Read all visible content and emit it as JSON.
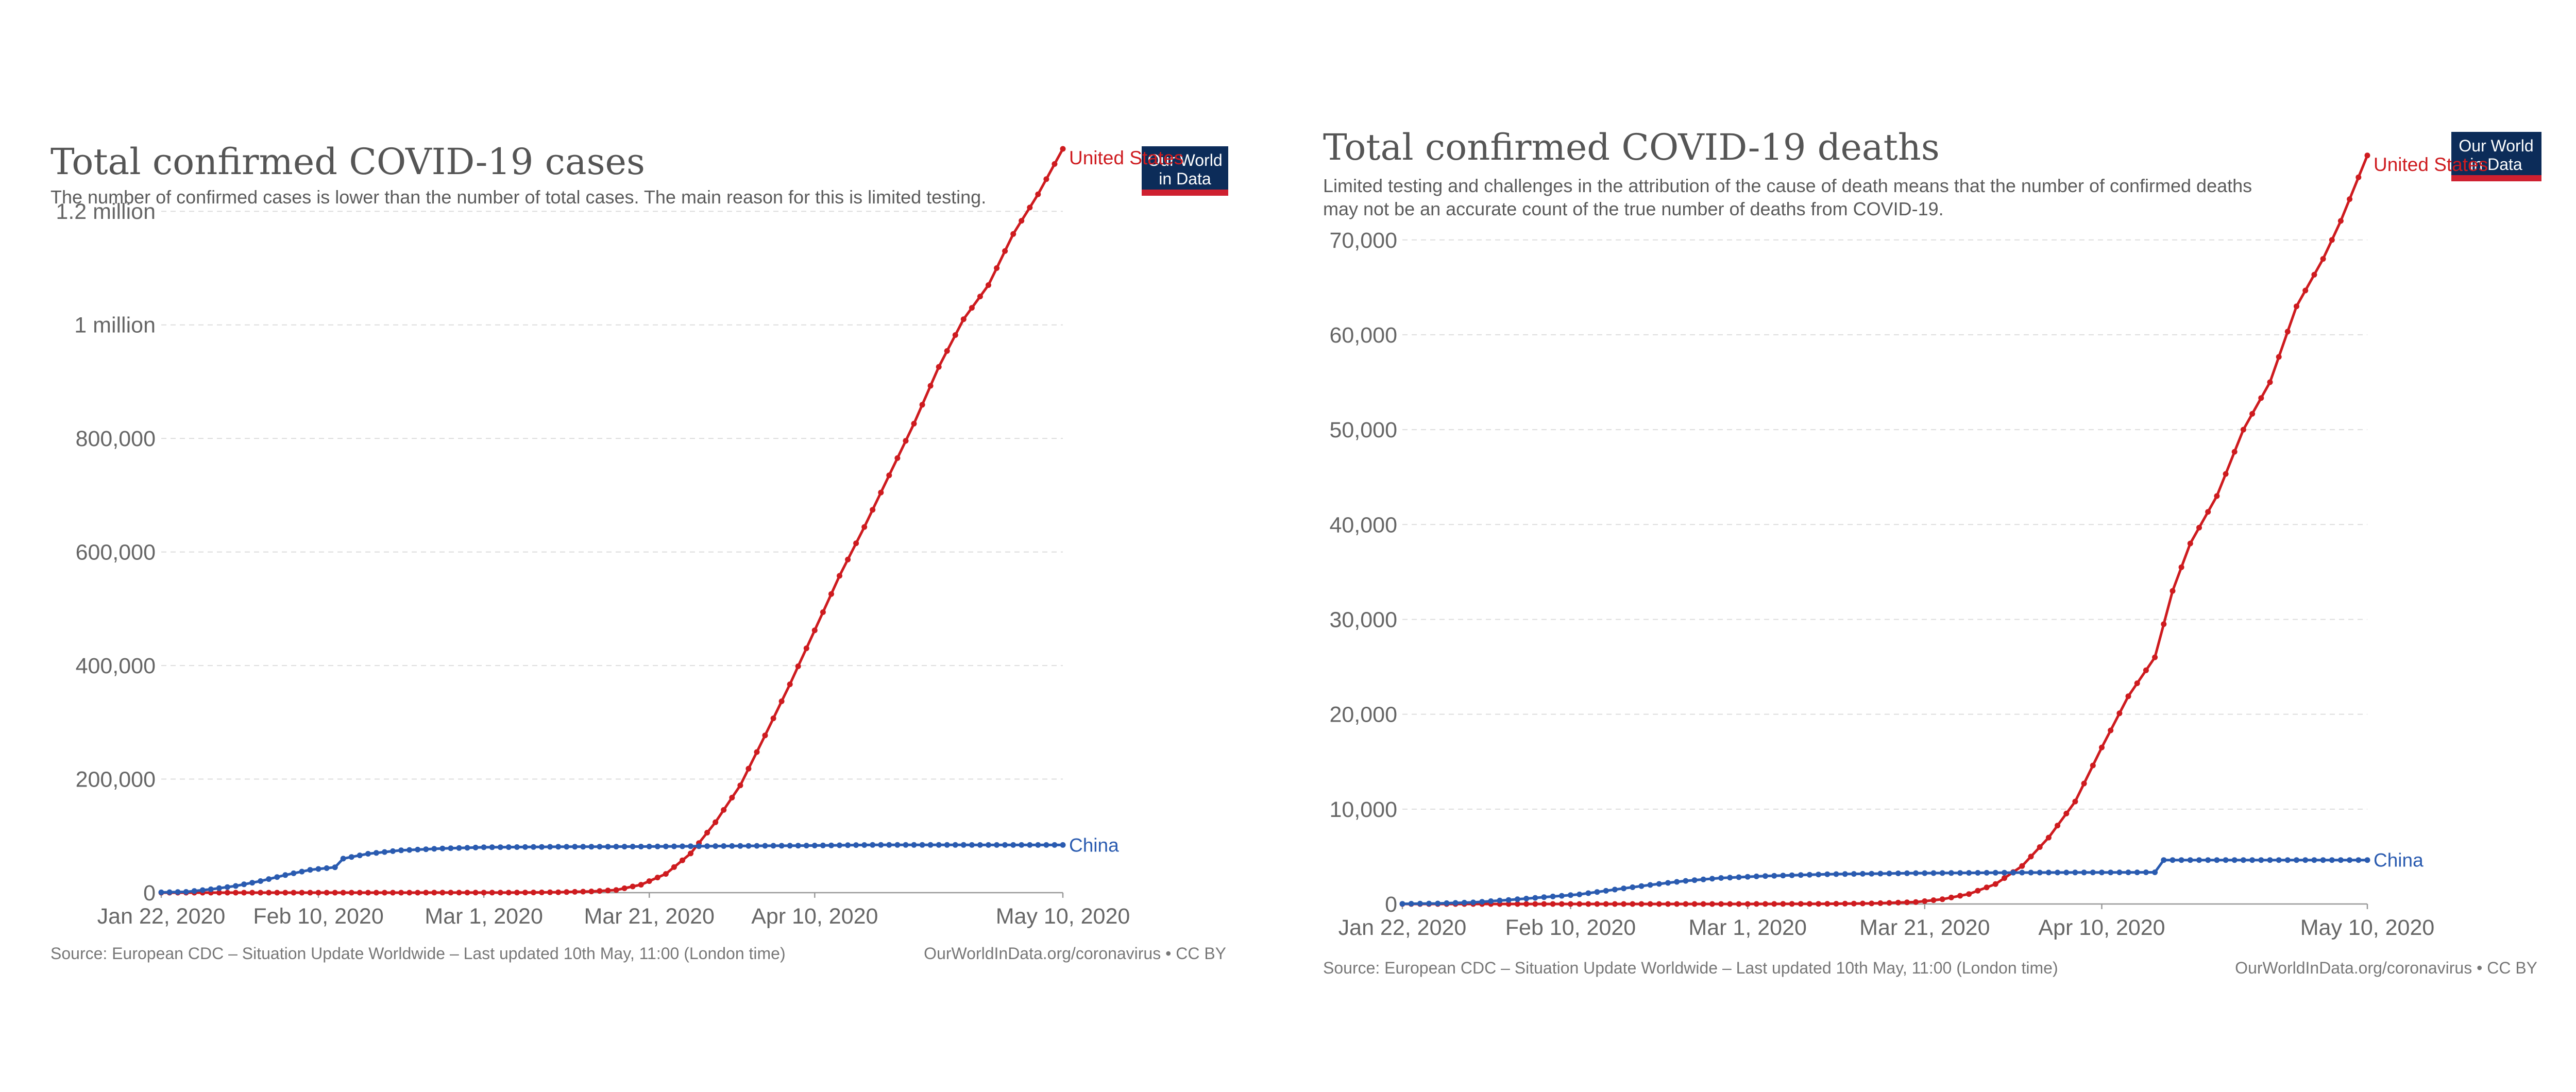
{
  "logo": {
    "line1": "Our World",
    "line2": "in Data",
    "bg_color": "#0c2c59",
    "bar_color": "#cf2030"
  },
  "colors": {
    "united_states": "#ce1b1f",
    "china": "#2a5bb0"
  },
  "chart_data": [
    {
      "type": "line",
      "title": "Total confirmed COVID-19 cases",
      "subtitle": [
        "The number of confirmed cases is lower than the number of total cases. The main reason for this is limited testing."
      ],
      "source": "Source: European CDC – Situation Update Worldwide – Last updated 10th May, 11:00 (London time)",
      "credit": "OurWorldInData.org/coronavirus • CC BY",
      "x_range": [
        "2020-01-22",
        "2020-05-10"
      ],
      "x_ticks": [
        {
          "date": "2020-01-22",
          "label": "Jan 22, 2020"
        },
        {
          "date": "2020-02-10",
          "label": "Feb 10, 2020"
        },
        {
          "date": "2020-03-01",
          "label": "Mar 1, 2020"
        },
        {
          "date": "2020-03-21",
          "label": "Mar 21, 2020"
        },
        {
          "date": "2020-04-10",
          "label": "Apr 10, 2020"
        },
        {
          "date": "2020-05-10",
          "label": "May 10, 2020"
        }
      ],
      "ylim": [
        0,
        1300000
      ],
      "y_ticks": [
        {
          "value": 0,
          "label": "0"
        },
        {
          "value": 200000,
          "label": "200,000"
        },
        {
          "value": 400000,
          "label": "400,000"
        },
        {
          "value": 600000,
          "label": "600,000"
        },
        {
          "value": 800000,
          "label": "800,000"
        },
        {
          "value": 1000000,
          "label": "1 million"
        },
        {
          "value": 1200000,
          "label": "1.2 million"
        }
      ],
      "grid": true,
      "series": [
        {
          "name": "United States",
          "color": "#ce1b1f",
          "points": [
            [
              "2020-01-22",
              1
            ],
            [
              "2020-02-15",
              15
            ],
            [
              "2020-03-01",
              75
            ],
            [
              "2020-03-05",
              150
            ],
            [
              "2020-03-10",
              700
            ],
            [
              "2020-03-14",
              2200
            ],
            [
              "2020-03-17",
              4600
            ],
            [
              "2020-03-20",
              14000
            ],
            [
              "2020-03-23",
              33000
            ],
            [
              "2020-03-26",
              69000
            ],
            [
              "2020-03-29",
              124000
            ],
            [
              "2020-04-01",
              189000
            ],
            [
              "2020-04-04",
              277000
            ],
            [
              "2020-04-07",
              367000
            ],
            [
              "2020-04-10",
              462000
            ],
            [
              "2020-04-13",
              558000
            ],
            [
              "2020-04-16",
              644000
            ],
            [
              "2020-04-19",
              735000
            ],
            [
              "2020-04-22",
              826000
            ],
            [
              "2020-04-25",
              926000
            ],
            [
              "2020-04-28",
              1010000
            ],
            [
              "2020-05-01",
              1070000
            ],
            [
              "2020-05-04",
              1160000
            ],
            [
              "2020-05-07",
              1230000
            ],
            [
              "2020-05-10",
              1310000
            ]
          ]
        },
        {
          "name": "China",
          "color": "#2a5bb0",
          "points": [
            [
              "2020-01-22",
              548
            ],
            [
              "2020-01-25",
              1400
            ],
            [
              "2020-01-28",
              5900
            ],
            [
              "2020-01-31",
              11800
            ],
            [
              "2020-02-03",
              20400
            ],
            [
              "2020-02-06",
              31000
            ],
            [
              "2020-02-09",
              40200
            ],
            [
              "2020-02-12",
              44700
            ],
            [
              "2020-02-13",
              60000
            ],
            [
              "2020-02-16",
              68500
            ],
            [
              "2020-02-20",
              74600
            ],
            [
              "2020-02-25",
              77800
            ],
            [
              "2020-03-01",
              79900
            ],
            [
              "2020-03-10",
              80800
            ],
            [
              "2020-03-20",
              81200
            ],
            [
              "2020-04-01",
              82300
            ],
            [
              "2020-04-10",
              83000
            ],
            [
              "2020-04-17",
              84100
            ],
            [
              "2020-05-10",
              84000
            ]
          ]
        }
      ]
    },
    {
      "type": "line",
      "title": "Total confirmed COVID-19 deaths",
      "subtitle": [
        "Limited testing and challenges in the attribution of the cause of death means that the number of confirmed deaths",
        "may not be an accurate count of the true number of deaths from COVID-19."
      ],
      "source": "Source: European CDC – Situation Update Worldwide – Last updated 10th May, 11:00 (London time)",
      "credit": "OurWorldInData.org/coronavirus • CC BY",
      "x_range": [
        "2020-01-22",
        "2020-05-10"
      ],
      "x_ticks": [
        {
          "date": "2020-01-22",
          "label": "Jan 22, 2020"
        },
        {
          "date": "2020-02-10",
          "label": "Feb 10, 2020"
        },
        {
          "date": "2020-03-01",
          "label": "Mar 1, 2020"
        },
        {
          "date": "2020-03-21",
          "label": "Mar 21, 2020"
        },
        {
          "date": "2020-04-10",
          "label": "Apr 10, 2020"
        },
        {
          "date": "2020-05-10",
          "label": "May 10, 2020"
        }
      ],
      "ylim": [
        0,
        79000
      ],
      "y_ticks": [
        {
          "value": 0,
          "label": "0"
        },
        {
          "value": 10000,
          "label": "10,000"
        },
        {
          "value": 20000,
          "label": "20,000"
        },
        {
          "value": 30000,
          "label": "30,000"
        },
        {
          "value": 40000,
          "label": "40,000"
        },
        {
          "value": 50000,
          "label": "50,000"
        },
        {
          "value": 60000,
          "label": "60,000"
        },
        {
          "value": 70000,
          "label": "70,000"
        }
      ],
      "grid": true,
      "series": [
        {
          "name": "United States",
          "color": "#ce1b1f",
          "points": [
            [
              "2020-01-22",
              0
            ],
            [
              "2020-02-29",
              0
            ],
            [
              "2020-03-10",
              20
            ],
            [
              "2020-03-15",
              60
            ],
            [
              "2020-03-20",
              200
            ],
            [
              "2020-03-23",
              500
            ],
            [
              "2020-03-26",
              1050
            ],
            [
              "2020-03-29",
              2100
            ],
            [
              "2020-04-01",
              4000
            ],
            [
              "2020-04-04",
              7000
            ],
            [
              "2020-04-07",
              10800
            ],
            [
              "2020-04-10",
              16500
            ],
            [
              "2020-04-13",
              21900
            ],
            [
              "2020-04-16",
              26000
            ],
            [
              "2020-04-18",
              33000
            ],
            [
              "2020-04-20",
              38000
            ],
            [
              "2020-04-23",
              43000
            ],
            [
              "2020-04-26",
              50000
            ],
            [
              "2020-04-29",
              55000
            ],
            [
              "2020-05-02",
              63000
            ],
            [
              "2020-05-05",
              68000
            ],
            [
              "2020-05-07",
              72000
            ],
            [
              "2020-05-10",
              78900
            ]
          ]
        },
        {
          "name": "China",
          "color": "#2a5bb0",
          "points": [
            [
              "2020-01-22",
              17
            ],
            [
              "2020-01-26",
              56
            ],
            [
              "2020-01-30",
              170
            ],
            [
              "2020-02-03",
              425
            ],
            [
              "2020-02-07",
              720
            ],
            [
              "2020-02-11",
              1010
            ],
            [
              "2020-02-15",
              1520
            ],
            [
              "2020-02-19",
              2010
            ],
            [
              "2020-02-23",
              2440
            ],
            [
              "2020-02-27",
              2740
            ],
            [
              "2020-03-03",
              2950
            ],
            [
              "2020-03-10",
              3140
            ],
            [
              "2020-03-20",
              3250
            ],
            [
              "2020-04-01",
              3310
            ],
            [
              "2020-04-16",
              3340
            ],
            [
              "2020-04-17",
              4630
            ],
            [
              "2020-05-10",
              4633
            ]
          ]
        }
      ]
    }
  ]
}
